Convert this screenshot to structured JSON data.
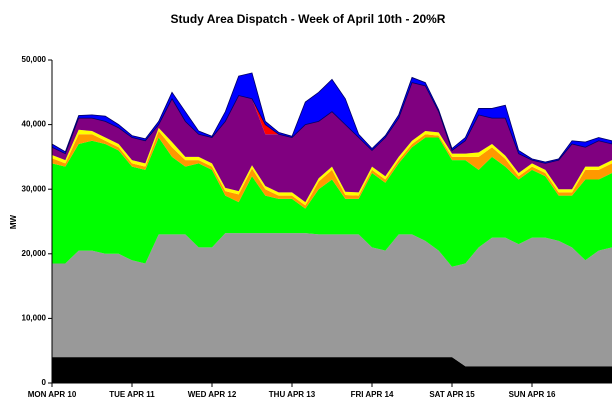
{
  "chart_data": {
    "type": "area",
    "stacked": true,
    "title": "Study Area Dispatch - Week of April 10th - 20%R",
    "y_label": "MW",
    "categories": [
      "MON APR 10",
      null,
      null,
      null,
      null,
      null,
      "TUE APR 11",
      null,
      null,
      null,
      null,
      null,
      "WED APR 12",
      null,
      null,
      null,
      null,
      null,
      "THU APR 13",
      null,
      null,
      null,
      null,
      null,
      "FRI APR 14",
      null,
      null,
      null,
      null,
      null,
      "SAT APR 15",
      null,
      null,
      null,
      null,
      null,
      "SUN APR 16",
      null,
      null,
      null,
      null,
      null,
      null
    ],
    "ylim": [
      0,
      50000
    ],
    "yticks": [
      0,
      {
        "value": 10000,
        "label": "10,000"
      },
      {
        "value": 20000,
        "label": "20,000"
      },
      {
        "value": 30000,
        "label": "30,000"
      },
      {
        "value": 40000,
        "label": "40,000"
      },
      {
        "value": 50000,
        "label": "50,000"
      }
    ],
    "series": [
      {
        "color": "#000000",
        "values": [
          4000,
          4000,
          4000,
          4000,
          4000,
          4000,
          4000,
          4000,
          4000,
          4000,
          4000,
          4000,
          4000,
          4000,
          4000,
          4000,
          4000,
          4000,
          4000,
          4000,
          4000,
          4000,
          4000,
          4000,
          4000,
          4000,
          4000,
          4000,
          4000,
          4000,
          4000,
          2600,
          2600,
          2600,
          2600,
          2600,
          2600,
          2600,
          2600,
          2600,
          2600,
          2600,
          2600
        ]
      },
      {
        "color": "#999999",
        "values": [
          14500,
          14500,
          16500,
          16500,
          16000,
          16000,
          15000,
          14500,
          19000,
          19000,
          19000,
          17000,
          17000,
          19200,
          19200,
          19200,
          19200,
          19200,
          19200,
          19200,
          19000,
          19000,
          19000,
          19000,
          17000,
          16500,
          19000,
          19000,
          18000,
          16500,
          14000,
          15900,
          18400,
          19900,
          19900,
          18900,
          19900,
          19900,
          19400,
          18400,
          16400,
          17900,
          18400
        ]
      },
      {
        "color": "#00ff00",
        "values": [
          15500,
          15000,
          16500,
          17000,
          17000,
          16000,
          14500,
          14500,
          15000,
          12000,
          10500,
          13000,
          12000,
          5800,
          4800,
          8800,
          5800,
          5300,
          5300,
          3800,
          7000,
          8500,
          5500,
          5500,
          11500,
          10500,
          11000,
          13500,
          16000,
          17500,
          16500,
          16000,
          12000,
          12500,
          11000,
          10000,
          10500,
          9500,
          7000,
          8000,
          12500,
          11000,
          11500
        ]
      },
      {
        "color": "#ff9900",
        "values": [
          800,
          500,
          1500,
          1000,
          500,
          500,
          500,
          500,
          1000,
          1500,
          1000,
          500,
          500,
          700,
          1200,
          1200,
          1000,
          500,
          500,
          500,
          1200,
          1500,
          600,
          500,
          500,
          500,
          500,
          500,
          500,
          300,
          500,
          500,
          2000,
          1500,
          1200,
          500,
          500,
          500,
          500,
          500,
          1500,
          1500,
          1500
        ]
      },
      {
        "color": "#ffff00",
        "values": [
          500,
          500,
          700,
          500,
          500,
          500,
          500,
          500,
          500,
          800,
          500,
          500,
          500,
          500,
          500,
          500,
          500,
          500,
          500,
          500,
          500,
          500,
          500,
          500,
          500,
          500,
          500,
          500,
          500,
          500,
          500,
          500,
          700,
          500,
          500,
          500,
          500,
          500,
          500,
          500,
          500,
          500,
          500
        ]
      },
      {
        "color": "#800080",
        "values": [
          1200,
          1000,
          1800,
          2000,
          2500,
          2500,
          3500,
          3500,
          500,
          6700,
          5500,
          3500,
          4000,
          10300,
          14800,
          10300,
          8000,
          9000,
          8500,
          12000,
          8800,
          8500,
          10400,
          8500,
          2500,
          6000,
          6000,
          9000,
          7000,
          3200,
          500,
          2000,
          5800,
          4000,
          5800,
          3000,
          500,
          1000,
          4500,
          7000,
          3000,
          4000,
          2500
        ]
      },
      {
        "color": "#ff0000",
        "values": [
          0,
          0,
          0,
          0,
          0,
          0,
          0,
          0,
          0,
          0,
          0,
          0,
          0,
          0,
          0,
          0,
          1500,
          0,
          0,
          0,
          0,
          0,
          0,
          0,
          0,
          0,
          0,
          0,
          0,
          0,
          0,
          0,
          0,
          0,
          0,
          0,
          0,
          0,
          0,
          0,
          0,
          0,
          0
        ]
      },
      {
        "color": "#0000ff",
        "values": [
          500,
          300,
          400,
          500,
          800,
          500,
          300,
          300,
          500,
          1000,
          1500,
          500,
          200,
          1500,
          3000,
          4000,
          500,
          300,
          200,
          3500,
          4500,
          5000,
          4000,
          500,
          300,
          300,
          500,
          800,
          500,
          300,
          300,
          500,
          1000,
          1500,
          2000,
          500,
          200,
          200,
          200,
          500,
          800,
          500,
          500
        ]
      }
    ]
  }
}
